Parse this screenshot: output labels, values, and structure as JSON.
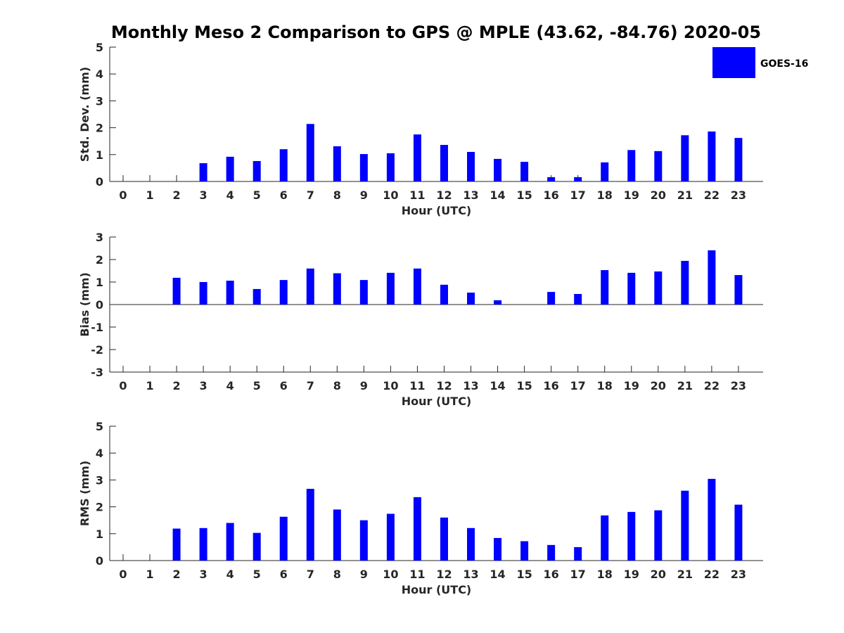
{
  "title": "Monthly Meso 2 Comparison to GPS @ MPLE (43.62, -84.76) 2020-05",
  "legend": {
    "label": "GOES-16",
    "placement": "top-right",
    "color": "#0000ff"
  },
  "bar_color": "#0000ff",
  "chart_data": [
    {
      "type": "bar",
      "name": "std",
      "xlabel": "Hour (UTC)",
      "ylabel": "Std. Dev. (mm)",
      "ylim": [
        0,
        5
      ],
      "yticks": [
        0,
        1,
        2,
        3,
        4,
        5
      ],
      "categories": [
        "0",
        "1",
        "2",
        "3",
        "4",
        "5",
        "6",
        "7",
        "8",
        "9",
        "10",
        "11",
        "12",
        "13",
        "14",
        "15",
        "16",
        "17",
        "18",
        "19",
        "20",
        "21",
        "22",
        "23"
      ],
      "series": [
        {
          "name": "GOES-16",
          "values": [
            0,
            0,
            0,
            0.68,
            0.92,
            0.76,
            1.2,
            2.14,
            1.31,
            1.02,
            1.05,
            1.75,
            1.36,
            1.1,
            0.84,
            0.73,
            0.16,
            0.16,
            0.71,
            1.17,
            1.13,
            1.72,
            1.86,
            1.62
          ]
        }
      ],
      "grid": false
    },
    {
      "type": "bar",
      "name": "bias",
      "xlabel": "Hour (UTC)",
      "ylabel": "Bias (mm)",
      "ylim": [
        -3,
        3
      ],
      "yticks": [
        -3,
        -2,
        -1,
        0,
        1,
        2,
        3
      ],
      "categories": [
        "0",
        "1",
        "2",
        "3",
        "4",
        "5",
        "6",
        "7",
        "8",
        "9",
        "10",
        "11",
        "12",
        "13",
        "14",
        "15",
        "16",
        "17",
        "18",
        "19",
        "20",
        "21",
        "22",
        "23"
      ],
      "series": [
        {
          "name": "GOES-16",
          "values": [
            0,
            0,
            1.19,
            1.0,
            1.06,
            0.69,
            1.09,
            1.6,
            1.39,
            1.09,
            1.41,
            1.6,
            0.88,
            0.53,
            0.19,
            0,
            0.56,
            0.47,
            1.53,
            1.41,
            1.47,
            1.94,
            2.41,
            1.31
          ]
        }
      ],
      "grid": false
    },
    {
      "type": "bar",
      "name": "rms",
      "xlabel": "Hour (UTC)",
      "ylabel": "RMS (mm)",
      "ylim": [
        0,
        5
      ],
      "yticks": [
        0,
        1,
        2,
        3,
        4,
        5
      ],
      "categories": [
        "0",
        "1",
        "2",
        "3",
        "4",
        "5",
        "6",
        "7",
        "8",
        "9",
        "10",
        "11",
        "12",
        "13",
        "14",
        "15",
        "16",
        "17",
        "18",
        "19",
        "20",
        "21",
        "22",
        "23"
      ],
      "series": [
        {
          "name": "GOES-16",
          "values": [
            0,
            0,
            1.19,
            1.21,
            1.4,
            1.03,
            1.63,
            2.67,
            1.9,
            1.5,
            1.74,
            2.36,
            1.6,
            1.21,
            0.84,
            0.72,
            0.58,
            0.5,
            1.68,
            1.81,
            1.87,
            2.6,
            3.04,
            2.08
          ]
        }
      ],
      "grid": false
    }
  ]
}
